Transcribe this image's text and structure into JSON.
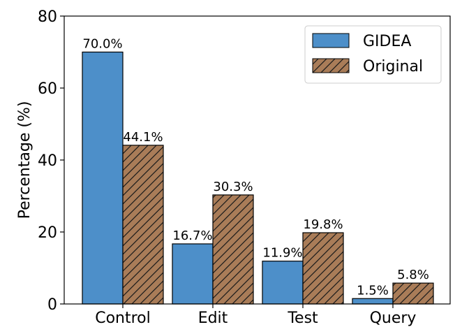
{
  "chart_data": {
    "type": "bar",
    "categories": [
      "Control",
      "Edit",
      "Test",
      "Query"
    ],
    "series": [
      {
        "name": "GIDEA",
        "values": [
          70.0,
          16.7,
          11.9,
          1.5
        ],
        "labels": [
          "70.0%",
          "16.7%",
          "11.9%",
          "1.5%"
        ],
        "color": "#4d8fc9",
        "hatch": false
      },
      {
        "name": "Original",
        "values": [
          44.1,
          30.3,
          19.8,
          5.8
        ],
        "labels": [
          "44.1%",
          "30.3%",
          "19.8%",
          "5.8%"
        ],
        "color": "#a97c58",
        "hatch": true
      }
    ],
    "ylabel": "Percentage (%)",
    "ylim": [
      0,
      80
    ],
    "yticks": [
      "0",
      "20",
      "40",
      "60",
      "80"
    ],
    "grid": false,
    "legend_position": "top-right"
  }
}
